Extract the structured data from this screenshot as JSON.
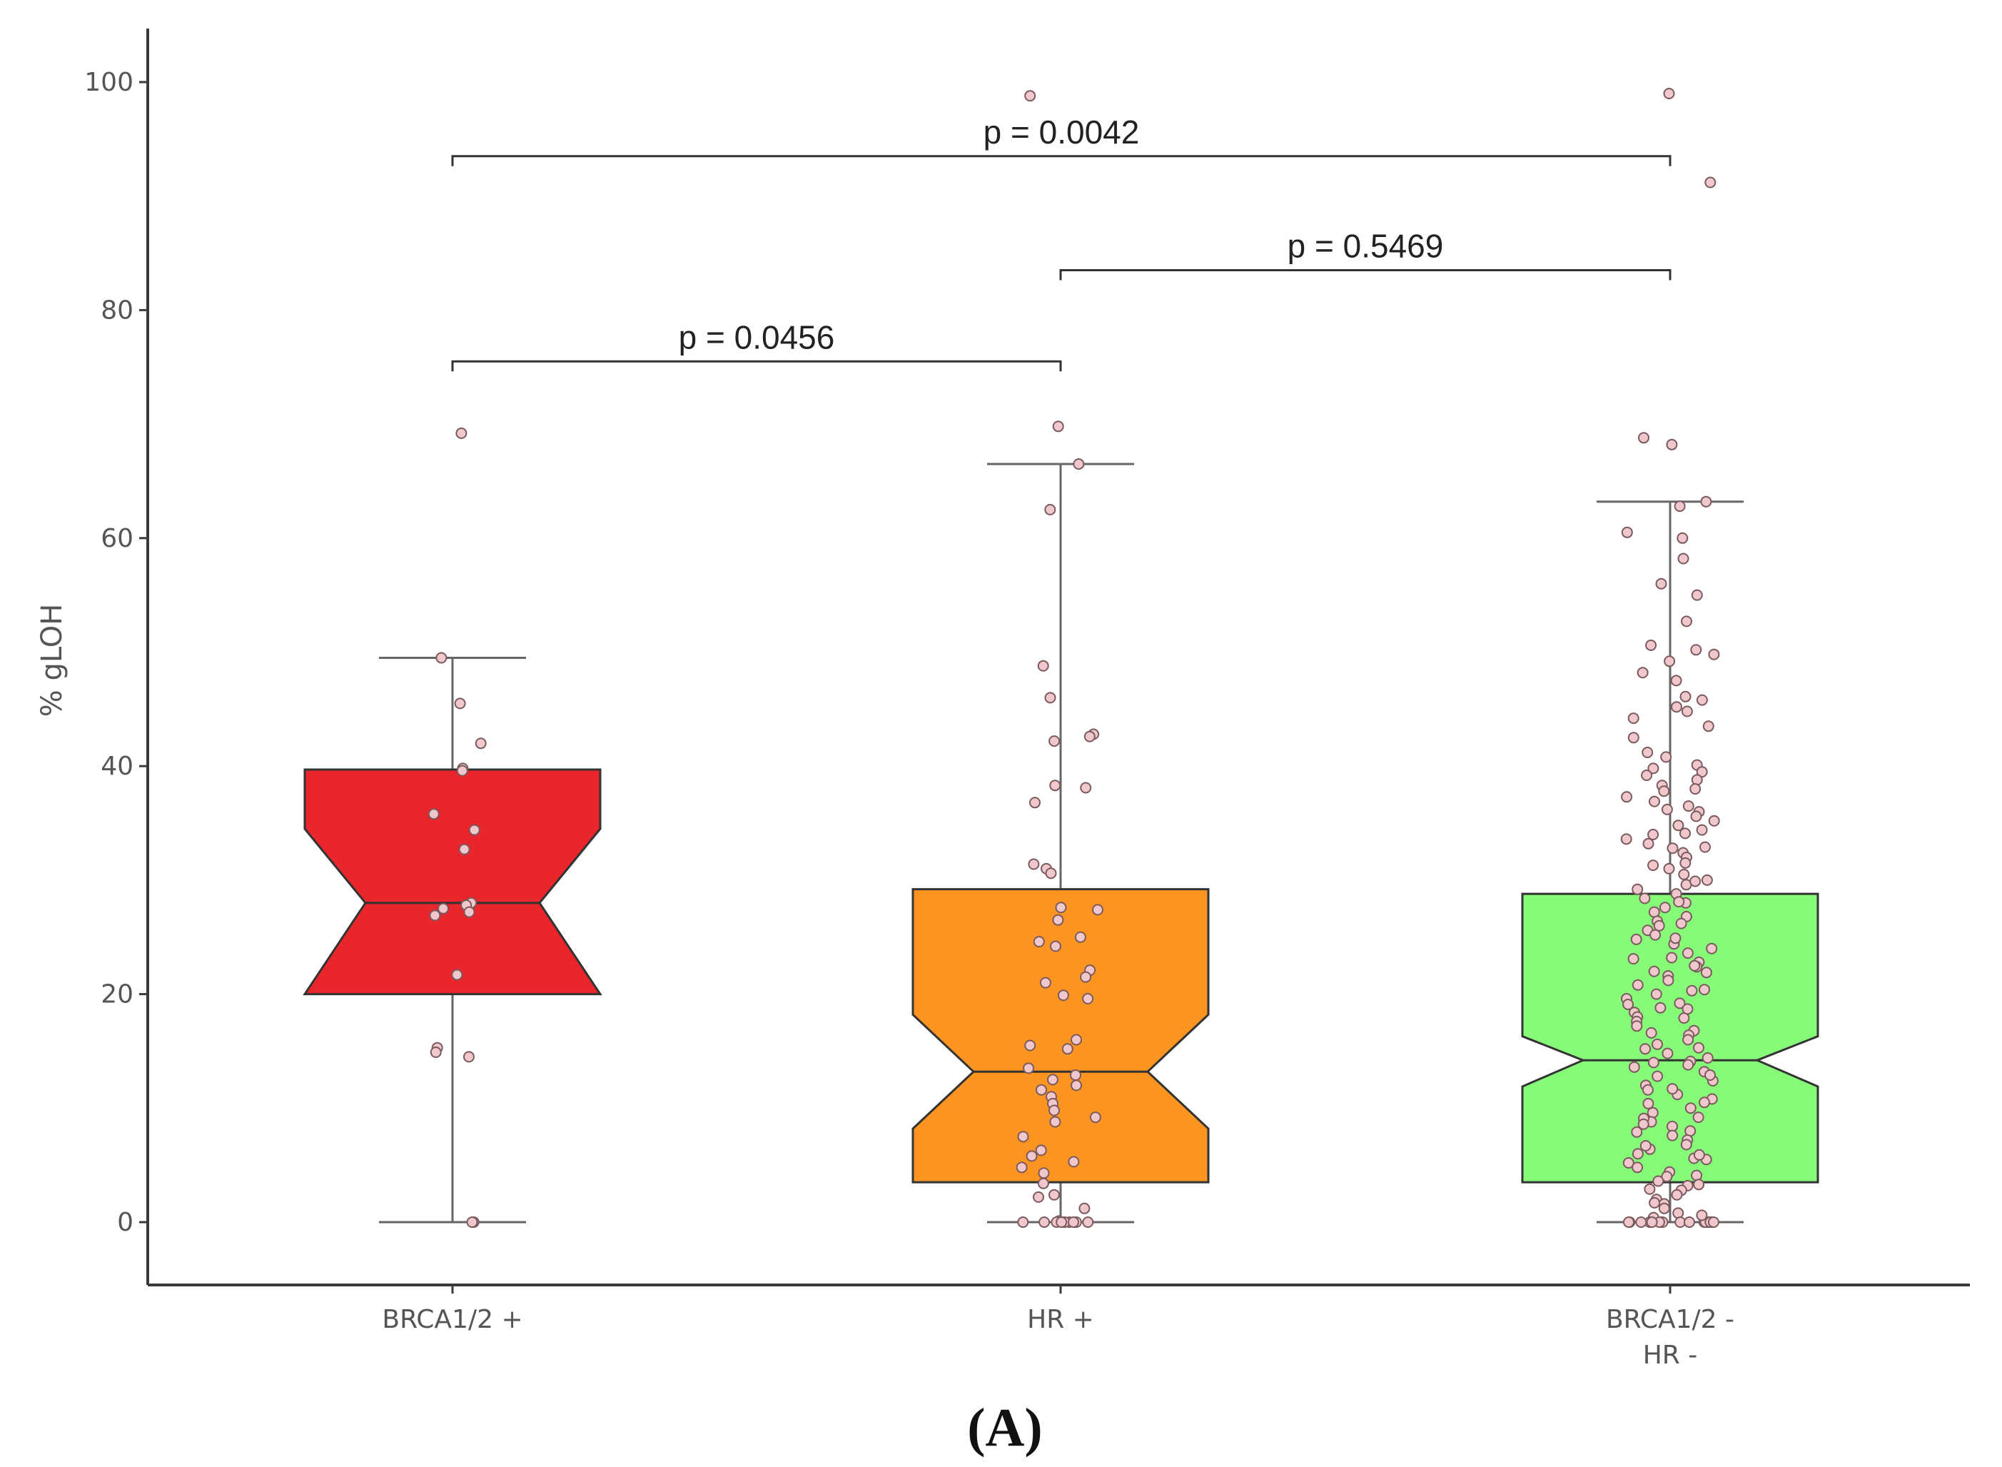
{
  "chart_data": {
    "type": "boxplot",
    "ylabel": "% gLOH",
    "xlabel": "",
    "ylim": [
      -5,
      105
    ],
    "yticks": [
      0,
      20,
      40,
      60,
      80,
      100
    ],
    "notched": true,
    "grid": false,
    "categories": [
      {
        "label_lines": [
          "BRCA1/2 +"
        ],
        "color": "#e8262b",
        "min": 0,
        "q1": 20,
        "median": 28,
        "q3": 39.7,
        "notch_low": 20,
        "notch_high": 34.5,
        "max": 49.5
      },
      {
        "label_lines": [
          "HR +"
        ],
        "color": "#fb9420",
        "min": 0,
        "q1": 3.5,
        "median": 13.2,
        "q3": 29.2,
        "notch_low": 8.2,
        "notch_high": 18.2,
        "max": 66.5
      },
      {
        "label_lines": [
          "BRCA1/2 -",
          "HR -"
        ],
        "color": "#86fb78",
        "min": 0,
        "q1": 3.5,
        "median": 14.2,
        "q3": 28.8,
        "notch_low": 11.9,
        "notch_high": 16.3,
        "max": 63.2
      }
    ],
    "points": [
      [
        69.2,
        49.5,
        45.5,
        42.0,
        39.8,
        39.6,
        35.8,
        34.4,
        32.7,
        28.0,
        27.8,
        27.5,
        27.2,
        26.9,
        21.7,
        15.3,
        14.9,
        14.5,
        0.0,
        0.0
      ],
      [
        98.8,
        69.8,
        66.5,
        62.5,
        48.8,
        46.0,
        42.8,
        42.6,
        42.2,
        38.3,
        38.1,
        36.8,
        31.4,
        31.0,
        30.6,
        27.6,
        27.4,
        26.5,
        25.0,
        24.6,
        24.2,
        22.1,
        21.5,
        21.0,
        19.9,
        19.6,
        16.0,
        15.5,
        15.2,
        13.5,
        12.9,
        12.5,
        12.0,
        11.6,
        11.0,
        10.4,
        9.8,
        9.2,
        8.8,
        7.5,
        6.3,
        5.8,
        5.3,
        4.8,
        4.3,
        3.4,
        2.4,
        2.2,
        1.2,
        0.1,
        0.0,
        0.0,
        0.0,
        0.0,
        0.0,
        0.0,
        0.0,
        0.0,
        0.0,
        0.0
      ],
      [
        99.0,
        91.2,
        68.8,
        68.2,
        63.2,
        62.8,
        60.5,
        60.0,
        58.2,
        56.0,
        55.0,
        52.7,
        50.6,
        50.2,
        49.8,
        49.2,
        48.2,
        47.5,
        46.1,
        45.8,
        45.2,
        44.8,
        44.2,
        43.5,
        42.5,
        41.2,
        40.8,
        40.1,
        39.8,
        39.5,
        39.2,
        38.8,
        38.3,
        37.8,
        37.3,
        36.9,
        36.5,
        36.0,
        35.6,
        35.2,
        34.8,
        34.4,
        34.0,
        33.6,
        33.2,
        32.8,
        32.4,
        32.0,
        31.5,
        31.0,
        30.5,
        30.0,
        29.6,
        29.2,
        28.8,
        28.4,
        28.0,
        27.6,
        27.2,
        26.8,
        26.4,
        26.0,
        25.6,
        25.2,
        24.8,
        24.4,
        24.0,
        23.6,
        23.2,
        22.8,
        22.4,
        22.0,
        21.6,
        21.2,
        20.8,
        20.4,
        20.0,
        19.6,
        19.2,
        18.8,
        18.4,
        18.0,
        17.6,
        17.2,
        16.8,
        16.4,
        16.0,
        15.6,
        15.2,
        14.8,
        14.4,
        14.0,
        13.6,
        13.2,
        12.8,
        12.4,
        12.0,
        11.6,
        11.2,
        10.8,
        10.4,
        10.0,
        9.6,
        9.2,
        8.8,
        8.4,
        8.0,
        7.6,
        7.2,
        6.8,
        6.4,
        6.0,
        5.6,
        5.2,
        4.8,
        4.4,
        4.0,
        3.6,
        3.2,
        2.8,
        2.4,
        2.0,
        1.6,
        1.2,
        0.8,
        0.4,
        0.0,
        0.0,
        0.0,
        0.0,
        0.0,
        0.0,
        0.0,
        0.0,
        0.0,
        0.0,
        0.0,
        0.0,
        0.0,
        0.0,
        0.0,
        0.0,
        0.0,
        0.0,
        0.0,
        0.0,
        38.0,
        36.2,
        34.1,
        32.9,
        31.3,
        29.9,
        28.1,
        26.2,
        24.9,
        23.1,
        21.9,
        20.3,
        19.1,
        17.9,
        16.6,
        15.3,
        14.1,
        12.9,
        11.7,
        10.5,
        9.1,
        7.9,
        6.7,
        5.5,
        4.1,
        2.9,
        1.7,
        0.6,
        22.5,
        18.7,
        13.8,
        8.6,
        5.9,
        3.3
      ]
    ],
    "comparisons": [
      {
        "from": 0,
        "to": 1,
        "y": 75.5,
        "label": "p = 0.0456"
      },
      {
        "from": 1,
        "to": 2,
        "y": 83.5,
        "label": "p = 0.5469"
      },
      {
        "from": 0,
        "to": 2,
        "y": 93.5,
        "label": "p = 0.0042"
      }
    ]
  },
  "panel_label": "(A)",
  "colors": {
    "axis": "#3a3a3a",
    "box_outline": "#333333",
    "whisker": "#666666",
    "point_fill": "#f0c8cc",
    "point_stroke": "#7a5a5e"
  }
}
